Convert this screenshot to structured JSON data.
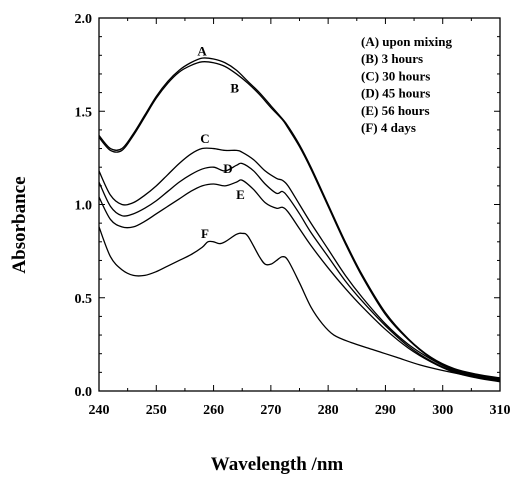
{
  "chart_data": {
    "type": "line",
    "title": "",
    "xlabel": "Wavelength /nm",
    "ylabel": "Absorbance",
    "xlim": [
      240,
      310
    ],
    "ylim": [
      0.0,
      2.0
    ],
    "x_ticks": [
      "240",
      "250",
      "260",
      "270",
      "280",
      "290",
      "300",
      "310"
    ],
    "y_ticks": [
      "0.0",
      "0.5",
      "1.0",
      "1.5",
      "2.0"
    ],
    "grid": false,
    "legend_position": "top-right",
    "legend": [
      "(A) upon mixing",
      "(B) 3 hours",
      "(C) 30 hours",
      "(D) 45 hours",
      "(E) 56 hours",
      "(F) 4 days"
    ],
    "series": [
      {
        "name": "A",
        "points": [
          [
            240,
            1.37
          ],
          [
            242,
            1.3
          ],
          [
            244,
            1.3
          ],
          [
            246,
            1.38
          ],
          [
            248,
            1.48
          ],
          [
            250,
            1.58
          ],
          [
            252,
            1.66
          ],
          [
            254,
            1.72
          ],
          [
            256,
            1.76
          ],
          [
            258,
            1.785
          ],
          [
            260,
            1.78
          ],
          [
            262,
            1.76
          ],
          [
            264,
            1.72
          ],
          [
            266,
            1.66
          ],
          [
            268,
            1.6
          ],
          [
            270,
            1.53
          ],
          [
            272,
            1.46
          ],
          [
            273,
            1.42
          ],
          [
            275,
            1.32
          ],
          [
            277,
            1.2
          ],
          [
            280,
            1.0
          ],
          [
            283,
            0.8
          ],
          [
            286,
            0.62
          ],
          [
            290,
            0.42
          ],
          [
            294,
            0.28
          ],
          [
            298,
            0.18
          ],
          [
            302,
            0.12
          ],
          [
            306,
            0.09
          ],
          [
            310,
            0.07
          ]
        ]
      },
      {
        "name": "B",
        "points": [
          [
            240,
            1.36
          ],
          [
            242,
            1.29
          ],
          [
            244,
            1.29
          ],
          [
            246,
            1.37
          ],
          [
            248,
            1.47
          ],
          [
            250,
            1.57
          ],
          [
            252,
            1.65
          ],
          [
            254,
            1.71
          ],
          [
            256,
            1.745
          ],
          [
            258,
            1.765
          ],
          [
            260,
            1.76
          ],
          [
            262,
            1.74
          ],
          [
            264,
            1.7
          ],
          [
            266,
            1.65
          ],
          [
            268,
            1.59
          ],
          [
            270,
            1.52
          ],
          [
            272,
            1.455
          ],
          [
            273,
            1.41
          ],
          [
            275,
            1.31
          ],
          [
            277,
            1.19
          ],
          [
            280,
            0.99
          ],
          [
            283,
            0.79
          ],
          [
            286,
            0.61
          ],
          [
            290,
            0.41
          ],
          [
            294,
            0.275
          ],
          [
            298,
            0.175
          ],
          [
            302,
            0.115
          ],
          [
            306,
            0.085
          ],
          [
            310,
            0.065
          ]
        ]
      },
      {
        "name": "C",
        "points": [
          [
            240,
            1.18
          ],
          [
            242,
            1.05
          ],
          [
            244,
            1.0
          ],
          [
            246,
            1.01
          ],
          [
            248,
            1.05
          ],
          [
            250,
            1.1
          ],
          [
            252,
            1.16
          ],
          [
            254,
            1.22
          ],
          [
            256,
            1.27
          ],
          [
            258,
            1.3
          ],
          [
            260,
            1.3
          ],
          [
            262,
            1.29
          ],
          [
            264,
            1.29
          ],
          [
            265,
            1.28
          ],
          [
            267,
            1.24
          ],
          [
            269,
            1.18
          ],
          [
            271,
            1.14
          ],
          [
            272,
            1.13
          ],
          [
            273,
            1.1
          ],
          [
            275,
            1.0
          ],
          [
            277,
            0.9
          ],
          [
            280,
            0.76
          ],
          [
            283,
            0.62
          ],
          [
            286,
            0.5
          ],
          [
            290,
            0.36
          ],
          [
            294,
            0.25
          ],
          [
            298,
            0.17
          ],
          [
            302,
            0.11
          ],
          [
            306,
            0.08
          ],
          [
            310,
            0.06
          ]
        ]
      },
      {
        "name": "D",
        "points": [
          [
            240,
            1.12
          ],
          [
            242,
            0.99
          ],
          [
            244,
            0.94
          ],
          [
            246,
            0.95
          ],
          [
            248,
            0.98
          ],
          [
            250,
            1.02
          ],
          [
            252,
            1.07
          ],
          [
            254,
            1.12
          ],
          [
            256,
            1.16
          ],
          [
            258,
            1.19
          ],
          [
            260,
            1.2
          ],
          [
            262,
            1.18
          ],
          [
            264,
            1.21
          ],
          [
            265,
            1.22
          ],
          [
            267,
            1.18
          ],
          [
            269,
            1.11
          ],
          [
            271,
            1.06
          ],
          [
            272,
            1.07
          ],
          [
            273,
            1.04
          ],
          [
            275,
            0.95
          ],
          [
            277,
            0.85
          ],
          [
            280,
            0.72
          ],
          [
            283,
            0.59
          ],
          [
            286,
            0.48
          ],
          [
            290,
            0.35
          ],
          [
            294,
            0.24
          ],
          [
            298,
            0.16
          ],
          [
            302,
            0.105
          ],
          [
            306,
            0.075
          ],
          [
            310,
            0.055
          ]
        ]
      },
      {
        "name": "E",
        "points": [
          [
            240,
            1.04
          ],
          [
            242,
            0.92
          ],
          [
            244,
            0.88
          ],
          [
            246,
            0.88
          ],
          [
            248,
            0.91
          ],
          [
            250,
            0.95
          ],
          [
            252,
            0.99
          ],
          [
            254,
            1.03
          ],
          [
            256,
            1.07
          ],
          [
            258,
            1.1
          ],
          [
            260,
            1.11
          ],
          [
            262,
            1.1
          ],
          [
            264,
            1.12
          ],
          [
            265,
            1.13
          ],
          [
            267,
            1.08
          ],
          [
            269,
            1.01
          ],
          [
            271,
            0.98
          ],
          [
            272,
            0.985
          ],
          [
            273,
            0.96
          ],
          [
            275,
            0.87
          ],
          [
            277,
            0.78
          ],
          [
            280,
            0.66
          ],
          [
            283,
            0.55
          ],
          [
            286,
            0.45
          ],
          [
            290,
            0.33
          ],
          [
            294,
            0.23
          ],
          [
            298,
            0.155
          ],
          [
            302,
            0.1
          ],
          [
            306,
            0.07
          ],
          [
            310,
            0.05
          ]
        ]
      },
      {
        "name": "F",
        "points": [
          [
            240,
            0.88
          ],
          [
            242,
            0.72
          ],
          [
            244,
            0.65
          ],
          [
            246,
            0.62
          ],
          [
            248,
            0.62
          ],
          [
            250,
            0.64
          ],
          [
            252,
            0.67
          ],
          [
            254,
            0.7
          ],
          [
            256,
            0.73
          ],
          [
            258,
            0.77
          ],
          [
            259,
            0.8
          ],
          [
            260,
            0.8
          ],
          [
            261,
            0.79
          ],
          [
            262,
            0.8
          ],
          [
            264,
            0.84
          ],
          [
            265,
            0.845
          ],
          [
            266,
            0.83
          ],
          [
            268,
            0.72
          ],
          [
            269,
            0.68
          ],
          [
            270,
            0.68
          ],
          [
            271,
            0.7
          ],
          [
            272,
            0.72
          ],
          [
            273,
            0.7
          ],
          [
            275,
            0.58
          ],
          [
            277,
            0.45
          ],
          [
            279,
            0.36
          ],
          [
            281,
            0.3
          ],
          [
            284,
            0.26
          ],
          [
            288,
            0.22
          ],
          [
            292,
            0.18
          ],
          [
            296,
            0.14
          ],
          [
            300,
            0.11
          ],
          [
            305,
            0.08
          ],
          [
            310,
            0.06
          ]
        ]
      }
    ],
    "curve_labels": [
      {
        "text": "A",
        "x": 258,
        "y": 1.8
      },
      {
        "text": "B",
        "x": 263.7,
        "y": 1.6
      },
      {
        "text": "C",
        "x": 258.5,
        "y": 1.33
      },
      {
        "text": "D",
        "x": 262.5,
        "y": 1.17
      },
      {
        "text": "E",
        "x": 264.7,
        "y": 1.03
      },
      {
        "text": "F",
        "x": 258.5,
        "y": 0.82
      }
    ]
  }
}
